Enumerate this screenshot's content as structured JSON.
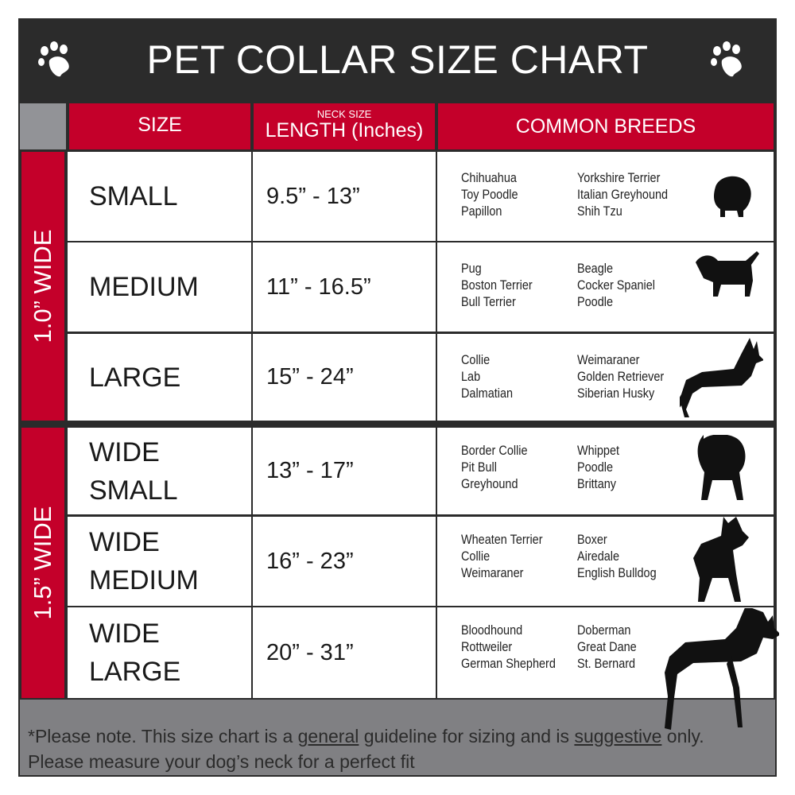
{
  "title": "PET COLLAR SIZE CHART",
  "icons": [
    "paw-icon",
    "paw-icon"
  ],
  "colors": {
    "dark": "#2b2b2b",
    "red": "#c4002a",
    "gray": "#808083"
  },
  "headers": {
    "size": "SIZE",
    "length_small": "NECK SIZE",
    "length": "LENGTH (Inches)",
    "breeds": "COMMON BREEDS"
  },
  "groups": [
    {
      "label": "1.0” WIDE"
    },
    {
      "label": "1.5” WIDE"
    }
  ],
  "rows": [
    {
      "size": "SMALL",
      "length": "9.5” - 13”",
      "breeds_a": [
        "Chihuahua",
        "Toy Poodle",
        "Papillon"
      ],
      "breeds_b": [
        "Yorkshire Terrier",
        "Italian Greyhound",
        "Shih Tzu"
      ]
    },
    {
      "size": "MEDIUM",
      "length": "11” - 16.5”",
      "breeds_a": [
        "Pug",
        "Boston Terrier",
        "Bull Terrier"
      ],
      "breeds_b": [
        "Beagle",
        "Cocker Spaniel",
        "Poodle"
      ]
    },
    {
      "size": "LARGE",
      "length": "15” - 24”",
      "breeds_a": [
        "Collie",
        "Lab",
        "Dalmatian"
      ],
      "breeds_b": [
        "Weimaraner",
        "Golden Retriever",
        "Siberian Husky"
      ]
    },
    {
      "size": "WIDE SMALL",
      "length": "13” - 17”",
      "breeds_a": [
        "Border Collie",
        "Pit Bull",
        "Greyhound"
      ],
      "breeds_b": [
        "Whippet",
        "Poodle",
        "Brittany"
      ]
    },
    {
      "size": "WIDE MEDIUM",
      "length": "16” - 23”",
      "breeds_a": [
        "Wheaten Terrier",
        "Collie",
        "Weimaraner"
      ],
      "breeds_b": [
        "Boxer",
        "Airedale",
        "English Bulldog"
      ]
    },
    {
      "size": "WIDE LARGE",
      "length": "20” - 31”",
      "breeds_a": [
        "Bloodhound",
        "Rottweiler",
        "German Shepherd"
      ],
      "breeds_b": [
        "Doberman",
        "Great Dane",
        "St. Bernard"
      ]
    }
  ],
  "footer": {
    "pre": "*Please note. This size chart is a ",
    "u1": "general",
    "mid": " guideline for sizing and is ",
    "u2": "suggestive",
    "post": " only.",
    "line2": "Please measure your dog’s neck for a perfect fit"
  }
}
